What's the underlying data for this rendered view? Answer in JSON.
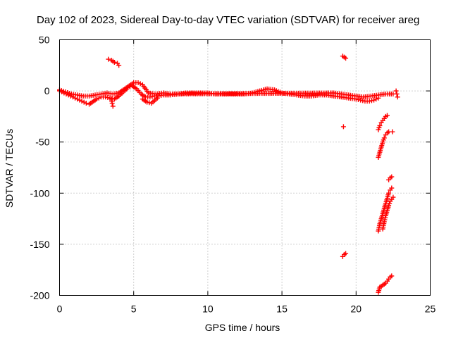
{
  "chart_data": {
    "type": "scatter",
    "title": "Day 102 of 2023, Sidereal Day-to-day VTEC variation (SDTVAR) for receiver areg",
    "xlabel": "GPS time / hours",
    "ylabel": "SDTVAR / TECUs",
    "xlim": [
      0,
      25
    ],
    "ylim": [
      -200,
      50
    ],
    "xticks": [
      0,
      5,
      10,
      15,
      20,
      25
    ],
    "yticks": [
      50,
      0,
      -50,
      -100,
      -150,
      -200
    ],
    "grid": true,
    "marker": "plus",
    "color": "#ff0000",
    "series": [
      {
        "name": "main-band-lower",
        "x": [
          0,
          0.3,
          0.6,
          0.9,
          1.2,
          1.5,
          1.8,
          2.0,
          2.2,
          2.5,
          2.8,
          3.1,
          3.4,
          3.7,
          4.0,
          4.3,
          4.6,
          4.9,
          5.2,
          5.5,
          5.8,
          6.1,
          6.4,
          6.7,
          7.0,
          7.5,
          8.0,
          8.5,
          9.0,
          9.5,
          10.0,
          10.5,
          11.0,
          11.5,
          12.0,
          12.5,
          13.0,
          13.5,
          14.0,
          14.5,
          15.0,
          15.5,
          16.0,
          16.5,
          17.0,
          17.5,
          18.0,
          18.5,
          19.0,
          19.5,
          20.0,
          20.3,
          20.6,
          20.9,
          21.2,
          21.5
        ],
        "y": [
          0,
          -2,
          -4,
          -6,
          -8,
          -10,
          -12,
          -13,
          -11,
          -8,
          -6,
          -6,
          -7,
          -8,
          -5,
          -1,
          3,
          5,
          2,
          -3,
          -6,
          -6,
          -5,
          -5,
          -4,
          -4,
          -3,
          -2,
          -2,
          -2,
          -2,
          -3,
          -3,
          -3,
          -3,
          -3,
          -2,
          0,
          2,
          1,
          -2,
          -3,
          -4,
          -5,
          -5,
          -4,
          -4,
          -5,
          -6,
          -7,
          -8,
          -9,
          -10,
          -10,
          -9,
          -7
        ]
      },
      {
        "name": "main-band-upper",
        "x": [
          0,
          0.4,
          0.8,
          1.2,
          1.6,
          2.0,
          2.4,
          2.8,
          3.2,
          3.6,
          4.0,
          4.4,
          4.8,
          5.0,
          5.3,
          5.6,
          6.0,
          6.5,
          7.0,
          7.5,
          18.5,
          19.0,
          19.5,
          20.0,
          20.5,
          21.0,
          21.5,
          22.0,
          22.5
        ],
        "y": [
          1,
          -1,
          -3,
          -4,
          -5,
          -5,
          -4,
          -3,
          -2,
          -3,
          -2,
          2,
          6,
          8,
          8,
          6,
          -2,
          -3,
          -2,
          -3,
          -2,
          -3,
          -4,
          -5,
          -6,
          -5,
          -4,
          -3,
          -3
        ]
      },
      {
        "name": "arc-3h",
        "x": [
          3.3,
          3.5,
          3.7,
          3.9,
          4.0
        ],
        "y": [
          31,
          30,
          28,
          27,
          25
        ]
      },
      {
        "name": "drop-3.5h",
        "x": [
          3.5,
          3.55,
          3.6
        ],
        "y": [
          -8,
          -12,
          -15
        ]
      },
      {
        "name": "spikes-5.5h",
        "x": [
          5.6,
          5.9,
          6.2,
          6.6
        ],
        "y": [
          -8,
          -11,
          -12,
          -7
        ]
      },
      {
        "name": "arc-19h-top",
        "x": [
          19.1,
          19.2,
          19.3
        ],
        "y": [
          34,
          33,
          32
        ]
      },
      {
        "name": "point-19h",
        "x": [
          19.15
        ],
        "y": [
          -35
        ]
      },
      {
        "name": "arc-19h-bottom",
        "x": [
          19.1,
          19.2,
          19.3
        ],
        "y": [
          -162,
          -160,
          -159
        ]
      },
      {
        "name": "arc-22.7h",
        "x": [
          22.7,
          22.75,
          22.8
        ],
        "y": [
          0,
          -3,
          -6
        ]
      },
      {
        "name": "arc-21.5h-a",
        "x": [
          21.5,
          21.6,
          21.7,
          21.8,
          21.9,
          22.0,
          22.1
        ],
        "y": [
          -38,
          -34,
          -31,
          -29,
          -27,
          -25,
          -24
        ]
      },
      {
        "name": "arc-21.5h-b",
        "x": [
          21.5,
          21.6,
          21.7,
          21.8,
          21.9,
          22.0,
          22.1,
          22.2
        ],
        "y": [
          -65,
          -60,
          -55,
          -50,
          -46,
          -43,
          -41,
          -40
        ]
      },
      {
        "name": "point-22.4h",
        "x": [
          22.45
        ],
        "y": [
          -40
        ]
      },
      {
        "name": "arc-22.3h",
        "x": [
          22.2,
          22.3,
          22.4
        ],
        "y": [
          -87,
          -85,
          -84
        ]
      },
      {
        "name": "arc-21.5h-c",
        "x": [
          21.5,
          21.6,
          21.7,
          21.8,
          21.9,
          22.0,
          22.1,
          22.2,
          22.3,
          22.4
        ],
        "y": [
          -137,
          -130,
          -125,
          -120,
          -115,
          -110,
          -105,
          -100,
          -97,
          -95
        ]
      },
      {
        "name": "arc-21.8h-d",
        "x": [
          21.8,
          21.9,
          22.0,
          22.1,
          22.2,
          22.3,
          22.4,
          22.5
        ],
        "y": [
          -135,
          -128,
          -122,
          -117,
          -112,
          -108,
          -106,
          -104
        ]
      },
      {
        "name": "arc-21.5h-bottom",
        "x": [
          21.5,
          21.6,
          21.7,
          21.8,
          21.9,
          22.0,
          22.1,
          22.2,
          22.3,
          22.4
        ],
        "y": [
          -197,
          -192,
          -191,
          -190,
          -189,
          -188,
          -186,
          -184,
          -182,
          -181
        ]
      }
    ]
  }
}
